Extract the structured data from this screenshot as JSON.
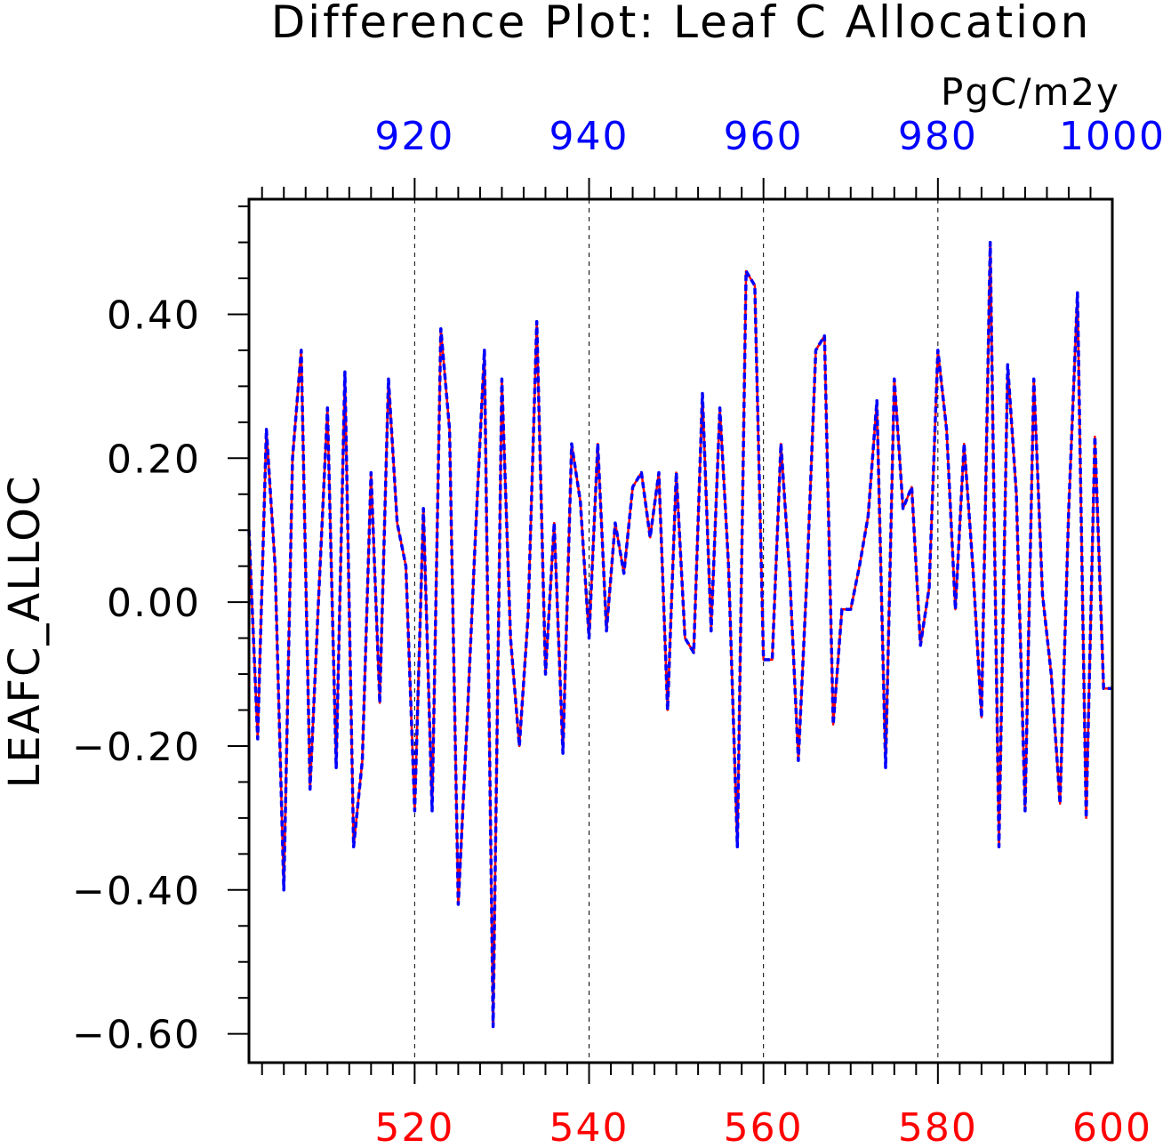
{
  "chart_data": {
    "type": "line",
    "title": "Difference Plot: Leaf C Allocation",
    "units": "PgC/m2y",
    "ylabel": "LEAFC_ALLOC",
    "xlabel": "",
    "bottom_axis": {
      "range": [
        501,
        600
      ],
      "ticks": [
        520,
        540,
        560,
        580,
        600
      ],
      "tick_labels": [
        "520",
        "540",
        "560",
        "580",
        "600"
      ],
      "color": "#ff0000"
    },
    "top_axis": {
      "range": [
        901,
        1000
      ],
      "ticks": [
        920,
        940,
        960,
        980,
        1000
      ],
      "tick_labels": [
        "920",
        "940",
        "960",
        "980",
        "1000"
      ],
      "color": "#0000ff"
    },
    "yaxis": {
      "range": [
        -0.64,
        0.56
      ],
      "ticks": [
        -0.6,
        -0.4,
        -0.2,
        0.0,
        0.2,
        0.4
      ],
      "tick_labels": [
        "−0.60",
        "−0.40",
        "−0.20",
        "0.00",
        "0.20",
        "0.40"
      ]
    },
    "grid": "dashed vertical at major x ticks",
    "legend": "none",
    "series": [
      {
        "color": "#ff0000",
        "style": "solid",
        "x": [
          501,
          502,
          503,
          504,
          505,
          506,
          507,
          508,
          509,
          510,
          511,
          512,
          513,
          514,
          515,
          516,
          517,
          518,
          519,
          520,
          521,
          522,
          523,
          524,
          525,
          526,
          527,
          528,
          529,
          530,
          531,
          532,
          533,
          534,
          535,
          536,
          537,
          538,
          539,
          540,
          541,
          542,
          543,
          544,
          545,
          546,
          547,
          548,
          549,
          550,
          551,
          552,
          553,
          554,
          555,
          556,
          557,
          558,
          559,
          560,
          561,
          562,
          563,
          564,
          565,
          566,
          567,
          568,
          569,
          570,
          571,
          572,
          573,
          574,
          575,
          576,
          577,
          578,
          579,
          580,
          581,
          582,
          583,
          584,
          585,
          586,
          587,
          588,
          589,
          590,
          591,
          592,
          593,
          594,
          595,
          596,
          597,
          598,
          599,
          600
        ],
        "values": [
          0.1,
          -0.19,
          0.24,
          0.05,
          -0.4,
          0.2,
          0.35,
          -0.26,
          0.01,
          0.27,
          -0.23,
          0.32,
          -0.34,
          -0.22,
          0.18,
          -0.14,
          0.31,
          0.11,
          0.05,
          -0.29,
          0.13,
          -0.29,
          0.38,
          0.24,
          -0.42,
          -0.17,
          0.1,
          0.35,
          -0.59,
          0.31,
          -0.05,
          -0.2,
          -0.02,
          0.39,
          -0.1,
          0.11,
          -0.21,
          0.22,
          0.14,
          -0.05,
          0.22,
          -0.04,
          0.11,
          0.04,
          0.16,
          0.18,
          0.09,
          0.18,
          -0.15,
          0.18,
          -0.05,
          -0.07,
          0.29,
          -0.04,
          0.27,
          0.05,
          -0.34,
          0.46,
          0.44,
          -0.08,
          -0.08,
          0.22,
          0.04,
          -0.22,
          0.04,
          0.35,
          0.37,
          -0.17,
          -0.01,
          -0.01,
          0.05,
          0.12,
          0.28,
          -0.23,
          0.31,
          0.13,
          0.16,
          -0.06,
          0.02,
          0.35,
          0.24,
          -0.01,
          0.22,
          0.05,
          -0.16,
          0.5,
          -0.34,
          0.33,
          0.15,
          -0.29,
          0.31,
          0.01,
          -0.1,
          -0.28,
          0.13,
          0.43,
          -0.3,
          0.23,
          -0.12,
          -0.12
        ]
      },
      {
        "color": "#0000ff",
        "style": "dashed",
        "x": [
          901,
          902,
          903,
          904,
          905,
          906,
          907,
          908,
          909,
          910,
          911,
          912,
          913,
          914,
          915,
          916,
          917,
          918,
          919,
          920,
          921,
          922,
          923,
          924,
          925,
          926,
          927,
          928,
          929,
          930,
          931,
          932,
          933,
          934,
          935,
          936,
          937,
          938,
          939,
          940,
          941,
          942,
          943,
          944,
          945,
          946,
          947,
          948,
          949,
          950,
          951,
          952,
          953,
          954,
          955,
          956,
          957,
          958,
          959,
          960,
          961,
          962,
          963,
          964,
          965,
          966,
          967,
          968,
          969,
          970,
          971,
          972,
          973,
          974,
          975,
          976,
          977,
          978,
          979,
          980,
          981,
          982,
          983,
          984,
          985,
          986,
          987,
          988,
          989,
          990,
          991,
          992,
          993,
          994,
          995,
          996,
          997,
          998,
          999,
          1000
        ],
        "values": [
          0.1,
          -0.19,
          0.24,
          0.05,
          -0.4,
          0.2,
          0.35,
          -0.26,
          0.01,
          0.27,
          -0.23,
          0.32,
          -0.34,
          -0.22,
          0.18,
          -0.14,
          0.31,
          0.11,
          0.05,
          -0.29,
          0.13,
          -0.29,
          0.38,
          0.24,
          -0.42,
          -0.17,
          0.1,
          0.35,
          -0.59,
          0.31,
          -0.05,
          -0.2,
          -0.02,
          0.39,
          -0.1,
          0.11,
          -0.21,
          0.22,
          0.14,
          -0.05,
          0.22,
          -0.04,
          0.11,
          0.04,
          0.16,
          0.18,
          0.09,
          0.18,
          -0.15,
          0.18,
          -0.05,
          -0.07,
          0.29,
          -0.04,
          0.27,
          0.05,
          -0.34,
          0.46,
          0.44,
          -0.08,
          -0.08,
          0.22,
          0.04,
          -0.22,
          0.04,
          0.35,
          0.37,
          -0.17,
          -0.01,
          -0.01,
          0.05,
          0.12,
          0.28,
          -0.23,
          0.31,
          0.13,
          0.16,
          -0.06,
          0.02,
          0.35,
          0.24,
          -0.01,
          0.22,
          0.05,
          -0.16,
          0.5,
          -0.34,
          0.33,
          0.15,
          -0.29,
          0.31,
          0.01,
          -0.1,
          -0.28,
          0.13,
          0.43,
          -0.3,
          0.23,
          -0.12,
          -0.12
        ]
      }
    ]
  }
}
